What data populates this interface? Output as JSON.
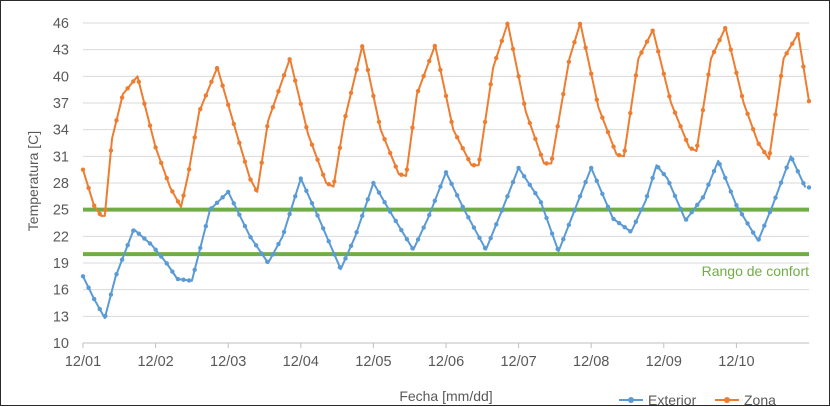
{
  "chart_data": {
    "type": "line",
    "title": "",
    "xlabel": "Fecha [mm/dd]",
    "ylabel": "Temperatura [C]",
    "ylim": [
      10,
      46
    ],
    "yticks": [
      "10",
      "13",
      "16",
      "19",
      "22",
      "25",
      "28",
      "31",
      "34",
      "37",
      "40",
      "43",
      "46"
    ],
    "xlim": [
      0,
      10
    ],
    "xticks": [
      "12/01",
      "12/02",
      "12/03",
      "12/04",
      "12/05",
      "12/06",
      "12/07",
      "12/08",
      "12/09",
      "12/10"
    ],
    "grid": "horizontal",
    "legend_position": "bottom-right",
    "comfort_range": {
      "label": "Rango de confort",
      "lower": 20.0,
      "upper": 25.0,
      "color": "#70ad47"
    },
    "series": [
      {
        "name": "Exterior",
        "color": "#5b9bd5",
        "x": [
          0.0,
          0.15,
          0.3,
          0.45,
          0.7,
          0.95,
          1.15,
          1.3,
          1.5,
          1.75,
          2.0,
          2.3,
          2.55,
          2.75,
          3.0,
          3.25,
          3.55,
          3.75,
          4.0,
          4.25,
          4.55,
          4.75,
          5.0,
          5.25,
          5.55,
          5.75,
          6.0,
          6.3,
          6.55,
          6.75,
          7.0,
          7.3,
          7.55,
          7.75,
          7.9,
          8.05,
          8.3,
          8.55,
          8.75,
          9.0,
          9.3,
          9.5,
          9.75,
          9.95
        ],
        "y": [
          17.5,
          15.0,
          12.8,
          17.5,
          22.8,
          21.0,
          19.0,
          17.2,
          17.0,
          25.0,
          27.0,
          22.0,
          19.0,
          22.0,
          28.5,
          24.0,
          18.3,
          22.0,
          28.0,
          24.5,
          20.5,
          24.0,
          29.2,
          25.0,
          20.5,
          24.5,
          29.7,
          26.0,
          20.3,
          24.5,
          29.7,
          24.0,
          22.5,
          26.0,
          30.0,
          28.5,
          23.8,
          26.5,
          30.5,
          25.5,
          21.5,
          25.5,
          31.0,
          27.5
        ]
      },
      {
        "name": "Zona",
        "color": "#ed7d31",
        "x": [
          0.0,
          0.15,
          0.25,
          0.3,
          0.4,
          0.55,
          0.75,
          1.0,
          1.2,
          1.35,
          1.45,
          1.6,
          1.85,
          2.1,
          2.3,
          2.4,
          2.55,
          2.85,
          3.1,
          3.35,
          3.45,
          3.6,
          3.85,
          4.1,
          4.35,
          4.45,
          4.6,
          4.85,
          5.1,
          5.35,
          5.45,
          5.65,
          5.85,
          6.1,
          6.35,
          6.45,
          6.7,
          6.85,
          7.1,
          7.35,
          7.45,
          7.65,
          7.85,
          8.1,
          8.35,
          8.45,
          8.65,
          8.85,
          9.1,
          9.3,
          9.45,
          9.65,
          9.85,
          10.0
        ],
        "y": [
          29.5,
          25.5,
          24.3,
          24.3,
          33.0,
          38.0,
          40.0,
          32.0,
          27.5,
          25.3,
          29.0,
          36.0,
          41.0,
          34.0,
          28.5,
          27.0,
          35.0,
          42.0,
          33.5,
          28.0,
          27.6,
          35.0,
          43.5,
          34.0,
          29.0,
          28.8,
          38.0,
          43.5,
          34.0,
          30.0,
          30.0,
          41.0,
          46.0,
          36.0,
          30.2,
          30.2,
          42.0,
          46.0,
          36.5,
          31.2,
          31.0,
          42.0,
          45.2,
          37.0,
          32.0,
          31.6,
          42.0,
          45.5,
          37.0,
          32.5,
          30.7,
          42.0,
          44.8,
          37.2
        ]
      }
    ]
  }
}
